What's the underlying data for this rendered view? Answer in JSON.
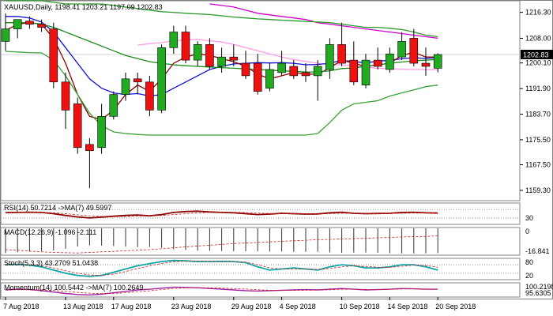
{
  "chart_data": {
    "type": "candlestick",
    "title": "XAUUSD,Daily",
    "ohlc_header": "1198.41 1203.21 1197.09 1202.83",
    "last_price_label": "1202.83",
    "y_ticks": [
      "1216.30",
      "1208.00",
      "1200.10",
      "1191.90",
      "1183.70",
      "1175.50",
      "1167.50",
      "1159.30"
    ],
    "ylim": [
      1156.0,
      1220.0
    ],
    "x_labels": [
      "7 Aug 2018",
      "13 Aug 2018",
      "17 Aug 2018",
      "23 Aug 2018",
      "29 Aug 2018",
      "4 Sep 2018",
      "10 Sep 2018",
      "14 Sep 2018",
      "20 Sep 2018"
    ],
    "x_label_bar_index": [
      0,
      5,
      9,
      14,
      19,
      23,
      28,
      32,
      36
    ],
    "candles": [
      {
        "o": 1207.0,
        "h": 1216.0,
        "l": 1204.0,
        "c": 1211.0
      },
      {
        "o": 1211.0,
        "h": 1214.0,
        "l": 1208.0,
        "c": 1214.0
      },
      {
        "o": 1213.5,
        "h": 1215.0,
        "l": 1211.0,
        "c": 1212.5
      },
      {
        "o": 1212.5,
        "h": 1214.0,
        "l": 1210.0,
        "c": 1211.5
      },
      {
        "o": 1211.0,
        "h": 1213.0,
        "l": 1192.0,
        "c": 1194.0
      },
      {
        "o": 1194.0,
        "h": 1197.0,
        "l": 1179.0,
        "c": 1185.0
      },
      {
        "o": 1187.0,
        "h": 1189.0,
        "l": 1171.0,
        "c": 1173.0
      },
      {
        "o": 1174.0,
        "h": 1176.0,
        "l": 1160.0,
        "c": 1172.0
      },
      {
        "o": 1173.0,
        "h": 1187.0,
        "l": 1171.0,
        "c": 1183.0
      },
      {
        "o": 1183.0,
        "h": 1191.0,
        "l": 1182.0,
        "c": 1190.0
      },
      {
        "o": 1190.0,
        "h": 1197.0,
        "l": 1188.0,
        "c": 1195.0
      },
      {
        "o": 1195.0,
        "h": 1197.0,
        "l": 1190.0,
        "c": 1194.0
      },
      {
        "o": 1194.0,
        "h": 1196.0,
        "l": 1183.0,
        "c": 1185.0
      },
      {
        "o": 1185.0,
        "h": 1206.0,
        "l": 1184.0,
        "c": 1205.0
      },
      {
        "o": 1205.0,
        "h": 1212.0,
        "l": 1203.0,
        "c": 1210.0
      },
      {
        "o": 1210.0,
        "h": 1212.0,
        "l": 1200.0,
        "c": 1201.0
      },
      {
        "o": 1201.0,
        "h": 1207.0,
        "l": 1199.0,
        "c": 1206.0
      },
      {
        "o": 1206.0,
        "h": 1208.0,
        "l": 1198.0,
        "c": 1199.0
      },
      {
        "o": 1199.0,
        "h": 1205.0,
        "l": 1197.0,
        "c": 1202.0
      },
      {
        "o": 1202.0,
        "h": 1206.0,
        "l": 1199.0,
        "c": 1201.0
      },
      {
        "o": 1200.0,
        "h": 1204.0,
        "l": 1195.0,
        "c": 1196.0
      },
      {
        "o": 1200.0,
        "h": 1203.0,
        "l": 1190.0,
        "c": 1191.0
      },
      {
        "o": 1192.0,
        "h": 1200.0,
        "l": 1191.0,
        "c": 1198.0
      },
      {
        "o": 1197.0,
        "h": 1204.0,
        "l": 1196.0,
        "c": 1200.0
      },
      {
        "o": 1199.0,
        "h": 1201.0,
        "l": 1195.0,
        "c": 1196.0
      },
      {
        "o": 1197.0,
        "h": 1200.0,
        "l": 1194.0,
        "c": 1196.0
      },
      {
        "o": 1196.0,
        "h": 1201.0,
        "l": 1188.0,
        "c": 1199.0
      },
      {
        "o": 1198.0,
        "h": 1208.0,
        "l": 1195.0,
        "c": 1206.0
      },
      {
        "o": 1206.0,
        "h": 1213.0,
        "l": 1199.0,
        "c": 1200.0
      },
      {
        "o": 1201.0,
        "h": 1207.0,
        "l": 1193.0,
        "c": 1194.0
      },
      {
        "o": 1193.0,
        "h": 1203.0,
        "l": 1192.0,
        "c": 1201.0
      },
      {
        "o": 1201.0,
        "h": 1205.0,
        "l": 1198.0,
        "c": 1199.0
      },
      {
        "o": 1198.0,
        "h": 1205.0,
        "l": 1197.0,
        "c": 1203.0
      },
      {
        "o": 1202.0,
        "h": 1210.0,
        "l": 1201.0,
        "c": 1207.0
      },
      {
        "o": 1208.0,
        "h": 1211.0,
        "l": 1199.0,
        "c": 1200.0
      },
      {
        "o": 1200.0,
        "h": 1205.0,
        "l": 1196.0,
        "c": 1199.0
      },
      {
        "o": 1198.4,
        "h": 1203.2,
        "l": 1197.1,
        "c": 1202.8
      }
    ],
    "overlays": [
      {
        "color": "#d000d0",
        "values": [
          null,
          null,
          null,
          null,
          null,
          null,
          null,
          null,
          null,
          null,
          null,
          null,
          null,
          null,
          null,
          null,
          null,
          1219,
          1218.5,
          1218,
          1217,
          1216,
          1215.5,
          1215,
          1214.5,
          1214,
          1213,
          1212.5,
          1212,
          1211.5,
          1211,
          1210.5,
          1210,
          1209.5,
          1209,
          1208.5,
          1208
        ]
      },
      {
        "color": "#ff9be6",
        "values": [
          null,
          null,
          null,
          null,
          null,
          null,
          null,
          null,
          null,
          null,
          null,
          1205.8,
          1206.3,
          1206.6,
          1207.2,
          1207.5,
          1207.6,
          1207.2,
          1206.8,
          1206,
          1205,
          1204,
          1203,
          1202,
          1201.2,
          1200.6,
          1200,
          1199.6,
          1199.5,
          1199.2,
          1198.8,
          1198.4,
          1198.2,
          1198.1,
          1198,
          1198,
          1198
        ]
      },
      {
        "color": "#1010d8",
        "values": [
          1215,
          1215,
          1214.5,
          1213.2,
          1210,
          1205,
          1200,
          1195,
          1192,
          1190.5,
          1190,
          1190.3,
          1189.5,
          1190,
          1192,
          1194,
          1196,
          1198,
          1199,
          1199.8,
          1200,
          1200.2,
          1200.1,
          1200.2,
          1200,
          1199.5,
          1199.6,
          1200,
          1201,
          1200.5,
          1200.2,
          1200.6,
          1201,
          1201.4,
          1201.8,
          1201.5,
          1201.8
        ]
      },
      {
        "color": "#900000",
        "values": [
          1210.5,
          1212.5,
          1213,
          1212.5,
          1208,
          1200,
          1190,
          1183,
          1182,
          1185,
          1190,
          1193,
          1191,
          1195,
          1200,
          1202,
          1203,
          1202.5,
          1201.5,
          1200.5,
          1199,
          1196.5,
          1195,
          1196,
          1197,
          1196.5,
          1196.5,
          1198.5,
          1201,
          1200,
          1199,
          1199.5,
          1200,
          1202.5,
          1203.5,
          1202,
          1202
        ]
      },
      {
        "color": "#1a8a1a",
        "values": [
          1213,
          1213,
          1213,
          1212.5,
          1211.5,
          1210,
          1208.5,
          1207,
          1205.5,
          1204,
          1202.5,
          1201.5,
          1200.5,
          1200,
          1199.5,
          1199.2,
          1199,
          1198.8,
          1198.6,
          1198.4,
          1198.2,
          1198,
          1197.8,
          1197.6,
          1197.4,
          1197.2,
          1197.2,
          1197.6,
          1198.3,
          1198.5,
          1199,
          1199.5,
          1200,
          1200.4,
          1200.8,
          1201,
          1201.2
        ]
      },
      {
        "color": "#2a9a2a",
        "values": [
          1220,
          1220,
          1220,
          1220,
          1219.5,
          1219,
          1219,
          1219,
          1219,
          1218.5,
          1218,
          1217.5,
          1217,
          1216.5,
          1216.3,
          1216,
          1215.8,
          1215.6,
          1215.2,
          1214.8,
          1214.5,
          1214.2,
          1214,
          1213.8,
          1213.6,
          1213.4,
          1213.2,
          1213,
          1212.5,
          1212,
          1211.5,
          1211.5,
          1211.2,
          1210.8,
          1210,
          1209,
          1208.5
        ]
      },
      {
        "color": "#3aa03a",
        "values": [
          1203.8,
          1203.6,
          1203.4,
          1203.3,
          1201,
          1196,
          1190,
          1184,
          1180,
          1178,
          1177.5,
          1177.2,
          1177,
          1177,
          1177,
          1177,
          1177,
          1177,
          1177,
          1177,
          1177,
          1177,
          1177,
          1177,
          1177,
          1177,
          1177.5,
          1181,
          1185,
          1187,
          1187.5,
          1188,
          1189.5,
          1190.5,
          1191.5,
          1192.5,
          1193
        ]
      }
    ],
    "panels": [
      {
        "label": "RSI(14) 50.7214 ->MA(7) 49.5997",
        "ticks": [
          "30"
        ],
        "lines": [
          {
            "color": "#8a0000",
            "width": 1.8,
            "dashed": false,
            "values": [
              0.55,
              0.56,
              0.57,
              0.56,
              0.5,
              0.42,
              0.35,
              0.3,
              0.34,
              0.38,
              0.42,
              0.44,
              0.4,
              0.46,
              0.56,
              0.6,
              0.62,
              0.58,
              0.56,
              0.54,
              0.5,
              0.46,
              0.48,
              0.52,
              0.5,
              0.48,
              0.49,
              0.54,
              0.57,
              0.52,
              0.5,
              0.51,
              0.52,
              0.56,
              0.57,
              0.54,
              0.53
            ]
          },
          {
            "color": "#cc2222",
            "width": 0.8,
            "dashed": true,
            "values": [
              0.55,
              0.55,
              0.56,
              0.56,
              0.54,
              0.5,
              0.45,
              0.4,
              0.37,
              0.36,
              0.37,
              0.39,
              0.4,
              0.42,
              0.46,
              0.5,
              0.54,
              0.56,
              0.57,
              0.57,
              0.55,
              0.53,
              0.51,
              0.5,
              0.5,
              0.5,
              0.49,
              0.5,
              0.52,
              0.52,
              0.51,
              0.51,
              0.51,
              0.52,
              0.53,
              0.53,
              0.53
            ]
          }
        ],
        "histogram": null
      },
      {
        "label": "MACD(12,26,9) -1.096 -2.111",
        "ticks": [
          "0",
          "-16.841"
        ],
        "lines": [
          {
            "color": "#cc2222",
            "width": 0.8,
            "dashed": true,
            "values": [
              0.2,
              0.18,
              0.15,
              0.12,
              0.1,
              0.09,
              0.08,
              0.1,
              0.12,
              0.14,
              0.16,
              0.18,
              0.2,
              0.23,
              0.27,
              0.3,
              0.33,
              0.36,
              0.39,
              0.42,
              0.44,
              0.46,
              0.48,
              0.5,
              0.52,
              0.54,
              0.56,
              0.57,
              0.59,
              0.6,
              0.61,
              0.63,
              0.64,
              0.66,
              0.67,
              0.68,
              0.7
            ]
          }
        ],
        "histogram": [
          0.95,
          0.92,
          0.9,
          0.88,
          0.85,
          0.78,
          0.7,
          0.66,
          0.66,
          0.68,
          0.7,
          0.72,
          0.72,
          0.75,
          0.8,
          0.83,
          0.85,
          0.86,
          0.87,
          0.88,
          0.88,
          0.88,
          0.89,
          0.89,
          0.9,
          0.9,
          0.9,
          0.92,
          0.94,
          0.93,
          0.93,
          0.94,
          0.95,
          0.96,
          0.96,
          0.96,
          0.95
        ]
      },
      {
        "label": "Stoch(5,3,3) 43.2709 51.0438",
        "ticks": [
          "80",
          "20"
        ],
        "lines": [
          {
            "color": "#0fa5a5",
            "width": 1.8,
            "dashed": false,
            "values": [
              0.7,
              0.72,
              0.68,
              0.6,
              0.45,
              0.3,
              0.2,
              0.15,
              0.2,
              0.35,
              0.5,
              0.65,
              0.75,
              0.85,
              0.9,
              0.88,
              0.85,
              0.85,
              0.86,
              0.85,
              0.8,
              0.6,
              0.45,
              0.5,
              0.55,
              0.5,
              0.45,
              0.6,
              0.7,
              0.65,
              0.55,
              0.55,
              0.6,
              0.7,
              0.7,
              0.6,
              0.45
            ]
          },
          {
            "color": "#cc2222",
            "width": 0.8,
            "dashed": true,
            "values": [
              0.72,
              0.71,
              0.7,
              0.66,
              0.55,
              0.42,
              0.3,
              0.22,
              0.2,
              0.26,
              0.38,
              0.52,
              0.65,
              0.76,
              0.84,
              0.87,
              0.87,
              0.86,
              0.85,
              0.85,
              0.82,
              0.7,
              0.55,
              0.5,
              0.5,
              0.5,
              0.48,
              0.52,
              0.6,
              0.65,
              0.62,
              0.58,
              0.58,
              0.63,
              0.68,
              0.66,
              0.58
            ]
          }
        ],
        "histogram": null
      },
      {
        "label": "Momentum(14) 100.5442 ->MA(7) 100.2649",
        "ticks": [
          "100.2198",
          "95.6305"
        ],
        "lines": [
          {
            "color": "#a020a0",
            "width": 1.4,
            "dashed": false,
            "values": [
              0.5,
              0.55,
              0.52,
              0.45,
              0.35,
              0.25,
              0.18,
              0.15,
              0.2,
              0.3,
              0.4,
              0.5,
              0.55,
              0.62,
              0.7,
              0.68,
              0.65,
              0.6,
              0.55,
              0.5,
              0.45,
              0.42,
              0.45,
              0.48,
              0.5,
              0.52,
              0.5,
              0.55,
              0.6,
              0.55,
              0.5,
              0.52,
              0.55,
              0.6,
              0.58,
              0.55,
              0.55
            ]
          },
          {
            "color": "#cc2222",
            "width": 0.8,
            "dashed": true,
            "values": [
              0.5,
              0.51,
              0.52,
              0.5,
              0.46,
              0.4,
              0.33,
              0.27,
              0.24,
              0.25,
              0.3,
              0.37,
              0.44,
              0.52,
              0.6,
              0.64,
              0.66,
              0.65,
              0.63,
              0.6,
              0.56,
              0.51,
              0.48,
              0.47,
              0.47,
              0.48,
              0.49,
              0.51,
              0.54,
              0.55,
              0.54,
              0.53,
              0.54,
              0.56,
              0.57,
              0.56,
              0.55
            ]
          }
        ],
        "histogram": null
      }
    ]
  },
  "colors": {
    "bull": "#22aa22",
    "bear": "#ee1111",
    "grid": "#c0c0c0",
    "last_price_bg": "#000000"
  }
}
